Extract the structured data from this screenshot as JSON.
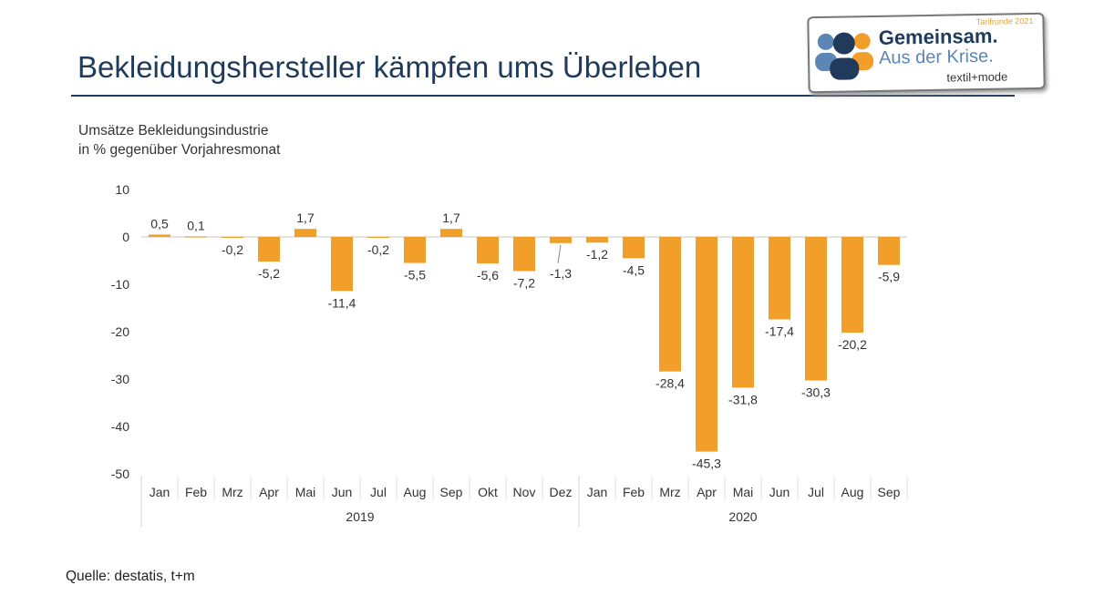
{
  "title": "Bekleidungshersteller kämpfen ums Überleben",
  "subtitle_line1": "Umsätze Bekleidungsindustrie",
  "subtitle_line2": "in % gegenüber Vorjahresmonat",
  "source": "Quelle: destatis, t+m",
  "logo": {
    "tag": "Tarifrunde 2021",
    "line1": "Gemeinsam.",
    "line2": "Aus der Krise.",
    "brand": "textil+mode"
  },
  "chart_data": {
    "type": "bar",
    "categories": [
      "Jan",
      "Feb",
      "Mrz",
      "Apr",
      "Mai",
      "Jun",
      "Jul",
      "Aug",
      "Sep",
      "Okt",
      "Nov",
      "Dez",
      "Jan",
      "Feb",
      "Mrz",
      "Apr",
      "Mai",
      "Jun",
      "Jul",
      "Aug",
      "Sep"
    ],
    "groups": [
      {
        "label": "2019",
        "count": 12
      },
      {
        "label": "2020",
        "count": 9
      }
    ],
    "values": [
      0.5,
      0.1,
      -0.2,
      -5.2,
      1.7,
      -11.4,
      -0.2,
      -5.5,
      1.7,
      -5.6,
      -7.2,
      -1.3,
      -1.2,
      -4.5,
      -28.4,
      -45.3,
      -31.8,
      -17.4,
      -30.3,
      -20.2,
      -5.9
    ],
    "data_labels": [
      "0,5",
      "0,1",
      "-0,2",
      "-5,2",
      "1,7",
      "-11,4",
      "-0,2",
      "-5,5",
      "1,7",
      "-5,6",
      "-7,2",
      "-1,3",
      "-1,2",
      "-4,5",
      "-28,4",
      "-45,3",
      "-31,8",
      "-17,4",
      "-30,3",
      "-20,2",
      "-5,9"
    ],
    "ylim": [
      -50,
      10
    ],
    "yticks": [
      "10",
      "0",
      "-10",
      "-20",
      "-30",
      "-40",
      "-50"
    ],
    "grid": false,
    "bar_color": "#f29e2b"
  }
}
